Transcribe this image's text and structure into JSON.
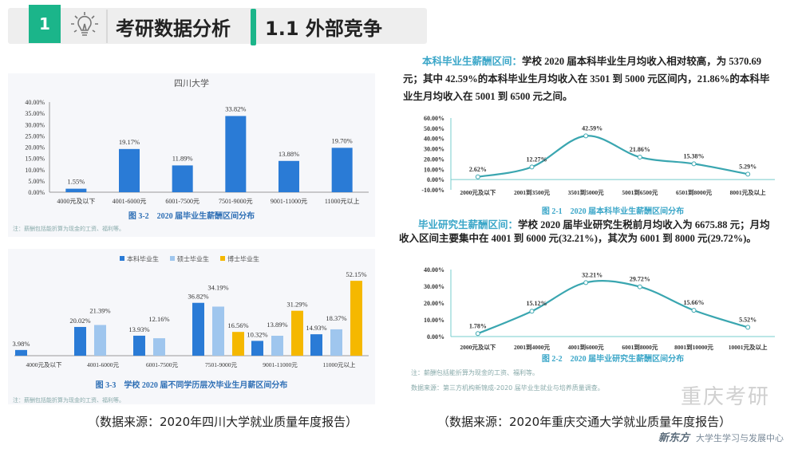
{
  "header": {
    "number": "1",
    "icon": "lightbulb-icon",
    "title": "考研数据分析",
    "subtitle": "1.1 外部竞争",
    "accent": "#1bb58a"
  },
  "left": {
    "source": "（数据来源：2020年四川大学就业质量年度报告）"
  },
  "right": {
    "para1_lead": "本科毕业生薪酬区间：",
    "para1_text": "学校 2020 届本科毕业生月均收入相对较高，为 5370.69 元；其中 42.59%的本科毕业生月均收入在 3501 到 5000 元区间内，21.86%的本科毕业生月均收入在 5001 到 6500 元之间。",
    "para2_lead": "毕业研究生薪酬区间：",
    "para2_text": "学校 2020 届毕业研究生税前月均收入为 6675.88 元；月均收入区间主要集中在 4001 到 6000 元(32.21%)，其次为 6001 到 8000 元(29.72%)。",
    "note": "注：薪酬包括能折算为现金的工资、福利等。",
    "datasource": "数据来源：第三方机构新锦成-2020 届毕业生就业与培养质量调查。",
    "source": "（数据来源：2020年重庆交通大学就业质量年度报告）"
  },
  "watermark": "重庆考研",
  "logo": {
    "brand": "新东方",
    "text": "大学生学习与发展中心"
  },
  "chart_data": [
    {
      "type": "bar",
      "title": "四川大学",
      "caption": "图 3-2　2020 届毕业生薪酬区间分布",
      "note": "注：薪酬包括能折算为现金的工资、福利等。",
      "categories": [
        "4000元及以下",
        "4001-6000元",
        "6001-7500元",
        "7501-9000元",
        "9001-11000元",
        "11000元以上"
      ],
      "values": [
        1.55,
        19.17,
        11.89,
        33.82,
        13.88,
        19.7
      ],
      "labels": [
        "1.55%",
        "19.17%",
        "11.89%",
        "33.82%",
        "13.88%",
        "19.70%"
      ],
      "yticks": [
        "0.00%",
        "5.00%",
        "10.00%",
        "15.00%",
        "20.00%",
        "25.00%",
        "30.00%",
        "35.00%",
        "40.00%"
      ],
      "ylim": [
        0,
        40
      ],
      "color": "#2a7bd6"
    },
    {
      "type": "bar",
      "caption": "图 3-3　学校 2020 届不同学历层次毕业生月薪区间分布",
      "note": "注：薪酬包括能折算为现金的工资、福利等。",
      "categories": [
        "4000元及以下",
        "4001-6000元",
        "6001-7500元",
        "7501-9000元",
        "9001-11000元",
        "11000元以上"
      ],
      "series": [
        {
          "name": "本科毕业生",
          "color": "#2a7bd6",
          "values": [
            3.98,
            20.02,
            13.93,
            36.82,
            10.32,
            14.93
          ],
          "labels": [
            "3.98%",
            "20.02%",
            "13.93%",
            "36.82%",
            "10.32%",
            "14.93%"
          ]
        },
        {
          "name": "硕士毕业生",
          "color": "#9fc6ee",
          "values": [
            null,
            21.39,
            12.16,
            34.19,
            13.89,
            18.37
          ],
          "labels": [
            "",
            "21.39%",
            "12.16%",
            "34.19%",
            "13.89%",
            "18.37%"
          ]
        },
        {
          "name": "博士毕业生",
          "color": "#f5b800",
          "values": [
            null,
            null,
            null,
            16.56,
            31.29,
            52.15
          ],
          "labels": [
            "",
            "",
            "",
            "16.56%",
            "31.29%",
            "52.15%"
          ]
        }
      ],
      "legend": "top",
      "ylim": [
        0,
        55
      ]
    },
    {
      "type": "line",
      "caption": "图 2-1　2020 届本科毕业生薪酬区间分布",
      "categories": [
        "2000元及以下",
        "2001到3500元",
        "3501到5000元",
        "5001到6500元",
        "6501到8000元",
        "8001元及以上"
      ],
      "values": [
        2.62,
        12.27,
        42.59,
        21.86,
        15.38,
        5.29
      ],
      "labels": [
        "2.62%",
        "12.27%",
        "42.59%",
        "21.86%",
        "15.38%",
        "5.29%"
      ],
      "yticks": [
        "-10.00%",
        "0.00%",
        "10.00%",
        "20.00%",
        "30.00%",
        "40.00%",
        "50.00%",
        "60.00%"
      ],
      "ylim": [
        -10,
        60
      ],
      "color": "#3aa6b0"
    },
    {
      "type": "line",
      "caption": "图 2-2　2020 届毕业研究生薪酬区间分布",
      "categories": [
        "2000元及以下",
        "2001到4000元",
        "4001到6000元",
        "6001到8000元",
        "8001到10000元",
        "10001元及以上"
      ],
      "values": [
        1.78,
        15.12,
        32.21,
        29.72,
        15.66,
        5.52
      ],
      "labels": [
        "1.78%",
        "15.12%",
        "32.21%",
        "29.72%",
        "15.66%",
        "5.52%"
      ],
      "yticks": [
        "0.00%",
        "10.00%",
        "20.00%",
        "30.00%",
        "40.00%"
      ],
      "ylim": [
        0,
        40
      ],
      "color": "#3aa6b0"
    }
  ]
}
